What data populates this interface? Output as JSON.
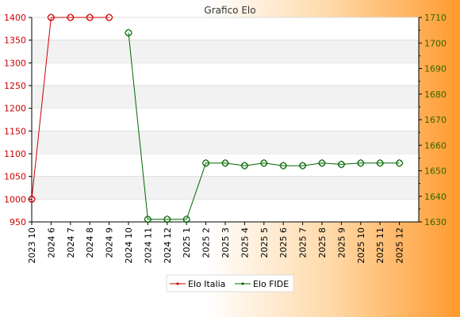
{
  "chart_data": {
    "type": "line",
    "title": "Grafico Elo",
    "categories": [
      "2023 10",
      "2024 6",
      "2024 7",
      "2024 8",
      "2024 9",
      "2024 10",
      "2024 11",
      "2024 12",
      "2025 1",
      "2025 2",
      "2025 3",
      "2025 4",
      "2025 5",
      "2025 6",
      "2025 7",
      "2025 8",
      "2025 9",
      "2025 10",
      "2025 11",
      "2025 12"
    ],
    "left_axis": {
      "ylim": [
        950,
        1400
      ],
      "ticks": [
        "950",
        "1000",
        "1050",
        "1100",
        "1150",
        "1200",
        "1250",
        "1300",
        "1350",
        "1400"
      ],
      "color": "#cc0000"
    },
    "right_axis": {
      "ylim": [
        1630,
        1710
      ],
      "ticks": [
        "1630",
        "1640",
        "1650",
        "1660",
        "1670",
        "1680",
        "1690",
        "1700",
        "1710"
      ],
      "color": "#336600"
    },
    "series": [
      {
        "name": "Elo Italia",
        "axis": "left",
        "color": "#cc0000",
        "values": [
          1000,
          1400,
          1400,
          1400,
          1400,
          null,
          null,
          null,
          null,
          null,
          null,
          null,
          null,
          null,
          null,
          null,
          null,
          null,
          null,
          null
        ]
      },
      {
        "name": "Elo FIDE",
        "axis": "right",
        "color": "#006600",
        "values": [
          null,
          null,
          null,
          null,
          null,
          1704,
          1631,
          1631,
          1631,
          1653,
          1653,
          1652,
          1653,
          1652,
          1652,
          1653,
          1652.5,
          1653,
          1653,
          1653
        ]
      }
    ],
    "grid": true,
    "legend_position": "bottom-center"
  }
}
